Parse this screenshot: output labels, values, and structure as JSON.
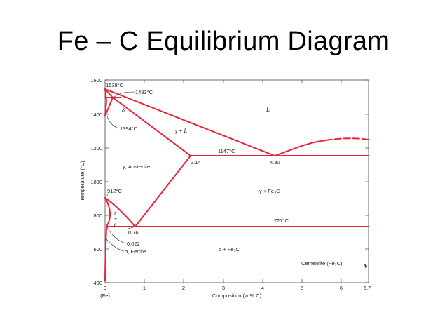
{
  "slide": {
    "title": "Fe – C Equilibrium Diagram"
  },
  "axes": {
    "ylabel": "Temperature (°C)",
    "xlabel": "Composition (wt% C)",
    "x_origin_label": "(Fe)",
    "y_ticks": [
      "400",
      "600",
      "800",
      "1000",
      "1200",
      "1400",
      "1600"
    ],
    "x_ticks": [
      "0",
      "1",
      "2",
      "3",
      "4",
      "5",
      "6",
      "6.7"
    ]
  },
  "labels": {
    "t1538": "1538°C",
    "t1493": "1493°C",
    "t1394": "1394°C",
    "t1147": "1147°C",
    "t912": "912°C",
    "t727": "727°C",
    "c214": "2.14",
    "c430": "4.30",
    "c076": "0.76",
    "c0022": "0.022",
    "delta": "δ",
    "liquid": "L",
    "gamma_l": "γ + L",
    "austenite": "γ, Austenite",
    "gamma_fe3c": "γ + Fe₃C",
    "alpha_gamma_1": "α",
    "alpha_gamma_2": "+",
    "alpha_gamma_3": "γ",
    "ferrite": "α, Ferrite",
    "alpha_fe3c": "α + Fe₃C",
    "cementite": "Cementite (Fe₃C)"
  },
  "colors": {
    "phase_lines": "#e8243c",
    "frame": "#444444"
  }
}
